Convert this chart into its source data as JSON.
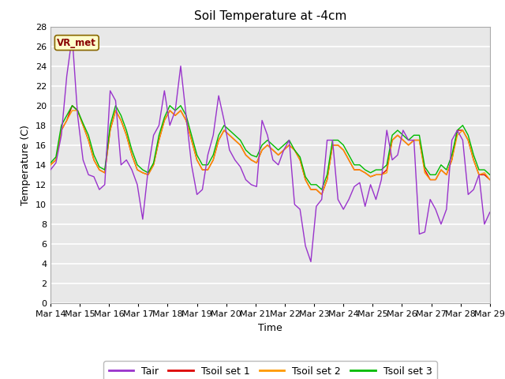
{
  "title": "Soil Temperature at -4cm",
  "xlabel": "Time",
  "ylabel": "Temperature (C)",
  "ylim": [
    0,
    28
  ],
  "yticks": [
    0,
    2,
    4,
    6,
    8,
    10,
    12,
    14,
    16,
    18,
    20,
    22,
    24,
    26,
    28
  ],
  "xtick_labels": [
    "Mar 14",
    "Mar 15",
    "Mar 16",
    "Mar 17",
    "Mar 18",
    "Mar 19",
    "Mar 20",
    "Mar 21",
    "Mar 22",
    "Mar 23",
    "Mar 24",
    "Mar 25",
    "Mar 26",
    "Mar 27",
    "Mar 28",
    "Mar 29"
  ],
  "annotation_text": "VR_met",
  "annotation_bg": "#ffffcc",
  "annotation_border": "#886600",
  "annotation_text_color": "#880000",
  "tair_color": "#9933cc",
  "tsoil1_color": "#dd0000",
  "tsoil2_color": "#ff9900",
  "tsoil3_color": "#00bb00",
  "fig_bg_color": "#ffffff",
  "plot_bg_color": "#e8e8e8",
  "grid_color": "#ffffff",
  "legend_labels": [
    "Tair",
    "Tsoil set 1",
    "Tsoil set 2",
    "Tsoil set 3"
  ],
  "tair": [
    13.5,
    14.2,
    17.0,
    23.0,
    27.0,
    19.0,
    14.5,
    13.0,
    12.8,
    11.5,
    12.0,
    21.5,
    20.5,
    14.0,
    14.5,
    13.5,
    12.0,
    8.5,
    13.5,
    17.0,
    18.0,
    21.5,
    18.0,
    19.5,
    24.0,
    19.0,
    14.0,
    11.0,
    11.5,
    15.0,
    17.0,
    21.0,
    18.5,
    15.5,
    14.5,
    13.8,
    12.5,
    12.0,
    11.8,
    18.5,
    17.0,
    14.5,
    14.0,
    15.5,
    16.5,
    10.0,
    9.5,
    5.8,
    4.2,
    9.8,
    10.5,
    16.5,
    16.5,
    10.5,
    9.5,
    10.5,
    11.8,
    12.2,
    9.8,
    12.0,
    10.5,
    12.5,
    17.5,
    14.5,
    15.0,
    17.5,
    16.5,
    16.5,
    7.0,
    7.2,
    10.5,
    9.5,
    8.0,
    9.5,
    16.5,
    17.5,
    16.5,
    11.0,
    11.5,
    13.0,
    8.0,
    9.2
  ],
  "tsoil1": [
    14.0,
    14.5,
    17.5,
    18.5,
    20.0,
    19.5,
    18.0,
    16.5,
    14.5,
    13.5,
    13.2,
    17.5,
    19.5,
    18.5,
    17.0,
    15.0,
    13.5,
    13.2,
    13.0,
    14.0,
    16.5,
    18.5,
    19.5,
    19.0,
    19.5,
    18.5,
    16.5,
    14.5,
    13.5,
    13.5,
    14.5,
    16.5,
    17.5,
    17.0,
    16.5,
    16.0,
    15.0,
    14.5,
    14.2,
    15.5,
    16.0,
    15.5,
    15.0,
    15.5,
    16.0,
    15.5,
    14.5,
    12.5,
    11.5,
    11.5,
    11.0,
    12.5,
    16.0,
    16.0,
    15.5,
    14.5,
    13.5,
    13.5,
    13.2,
    12.8,
    13.0,
    13.0,
    13.5,
    16.5,
    17.0,
    16.5,
    16.0,
    16.5,
    16.5,
    13.5,
    12.5,
    12.5,
    13.5,
    13.0,
    14.5,
    17.5,
    17.5,
    16.5,
    14.5,
    13.0,
    13.0,
    12.5
  ],
  "tsoil2": [
    14.0,
    14.5,
    17.5,
    18.5,
    19.5,
    19.5,
    18.0,
    16.5,
    14.5,
    13.5,
    13.2,
    17.5,
    19.5,
    18.5,
    17.0,
    15.0,
    13.5,
    13.2,
    13.0,
    14.0,
    16.5,
    18.5,
    19.5,
    19.0,
    19.5,
    18.5,
    16.5,
    14.5,
    13.5,
    13.5,
    14.5,
    16.5,
    17.5,
    17.0,
    16.5,
    16.0,
    15.0,
    14.5,
    14.2,
    15.5,
    16.0,
    15.5,
    15.0,
    15.5,
    16.0,
    15.5,
    14.5,
    12.5,
    11.5,
    11.5,
    11.0,
    12.5,
    16.0,
    16.0,
    15.5,
    14.5,
    13.5,
    13.5,
    13.2,
    12.8,
    13.0,
    13.0,
    13.2,
    16.5,
    17.0,
    16.5,
    16.0,
    16.5,
    16.5,
    13.2,
    12.5,
    12.5,
    13.5,
    13.0,
    14.5,
    17.0,
    17.5,
    16.5,
    14.5,
    13.0,
    13.2,
    12.5
  ],
  "tsoil3": [
    14.2,
    14.8,
    18.0,
    19.0,
    20.0,
    19.5,
    18.2,
    17.0,
    15.0,
    13.8,
    13.5,
    18.0,
    20.0,
    19.0,
    17.5,
    15.5,
    14.0,
    13.5,
    13.2,
    14.2,
    17.0,
    18.8,
    20.0,
    19.5,
    20.0,
    19.0,
    17.0,
    15.0,
    14.0,
    14.0,
    15.0,
    17.0,
    18.0,
    17.5,
    17.0,
    16.5,
    15.5,
    15.0,
    14.8,
    16.0,
    16.5,
    16.0,
    15.5,
    16.0,
    16.5,
    15.5,
    14.8,
    12.8,
    12.0,
    12.0,
    11.5,
    13.0,
    16.5,
    16.5,
    16.0,
    15.0,
    14.0,
    14.0,
    13.5,
    13.2,
    13.5,
    13.5,
    14.0,
    17.0,
    17.5,
    17.0,
    16.5,
    17.0,
    17.0,
    13.8,
    13.0,
    13.0,
    14.0,
    13.5,
    15.0,
    17.5,
    18.0,
    17.0,
    15.0,
    13.5,
    13.5,
    13.0
  ]
}
